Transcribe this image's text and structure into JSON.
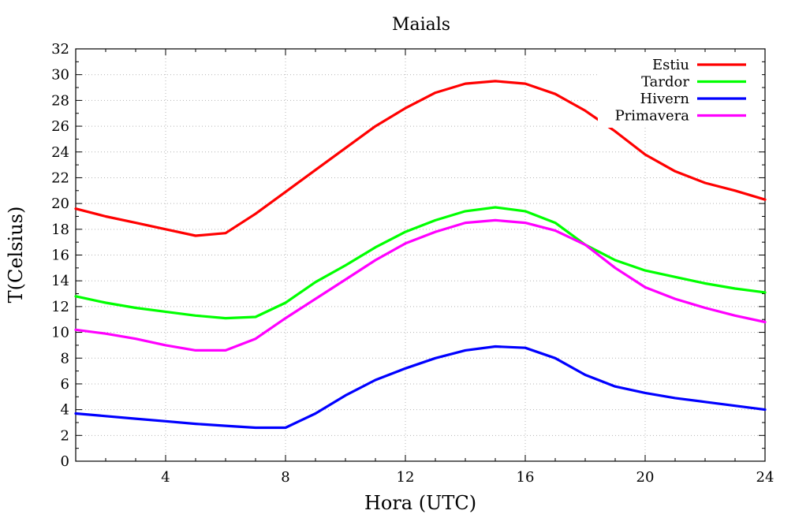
{
  "chart_data": {
    "type": "line",
    "title": "Maials",
    "xlabel": "Hora (UTC)",
    "ylabel": "T(Celsius)",
    "xlim": [
      1,
      24
    ],
    "ylim": [
      0,
      32
    ],
    "x_ticks": [
      4,
      8,
      12,
      16,
      20,
      24
    ],
    "y_ticks": [
      0,
      2,
      4,
      6,
      8,
      10,
      12,
      14,
      16,
      18,
      20,
      22,
      24,
      26,
      28,
      30,
      32
    ],
    "grid": true,
    "legend_position": "top-right",
    "x": [
      1,
      2,
      3,
      4,
      5,
      6,
      7,
      8,
      9,
      10,
      11,
      12,
      13,
      14,
      15,
      16,
      17,
      18,
      19,
      20,
      21,
      22,
      23,
      24
    ],
    "series": [
      {
        "name": "Estiu",
        "color": "#ff0000",
        "values": [
          19.6,
          19.0,
          18.5,
          18.0,
          17.5,
          17.7,
          19.2,
          20.9,
          22.6,
          24.3,
          26.0,
          27.4,
          28.6,
          29.3,
          29.5,
          29.3,
          28.5,
          27.2,
          25.6,
          23.8,
          22.5,
          21.6,
          21.0,
          20.3
        ]
      },
      {
        "name": "Tardor",
        "color": "#00ff00",
        "values": [
          12.8,
          12.3,
          11.9,
          11.6,
          11.3,
          11.1,
          11.2,
          12.3,
          13.9,
          15.2,
          16.6,
          17.8,
          18.7,
          19.4,
          19.7,
          19.4,
          18.5,
          16.8,
          15.6,
          14.8,
          14.3,
          13.8,
          13.4,
          13.1
        ]
      },
      {
        "name": "Hivern",
        "color": "#0000ff",
        "values": [
          3.7,
          3.5,
          3.3,
          3.1,
          2.9,
          2.75,
          2.6,
          2.6,
          3.7,
          5.1,
          6.3,
          7.2,
          8.0,
          8.6,
          8.9,
          8.8,
          8.0,
          6.7,
          5.8,
          5.3,
          4.9,
          4.6,
          4.3,
          4.0
        ]
      },
      {
        "name": "Primavera",
        "color": "#ff00ff",
        "values": [
          10.2,
          9.9,
          9.5,
          9.0,
          8.6,
          8.6,
          9.5,
          11.1,
          12.6,
          14.1,
          15.6,
          16.9,
          17.8,
          18.5,
          18.7,
          18.5,
          17.9,
          16.8,
          15.0,
          13.5,
          12.6,
          11.9,
          11.3,
          10.8
        ]
      }
    ]
  }
}
